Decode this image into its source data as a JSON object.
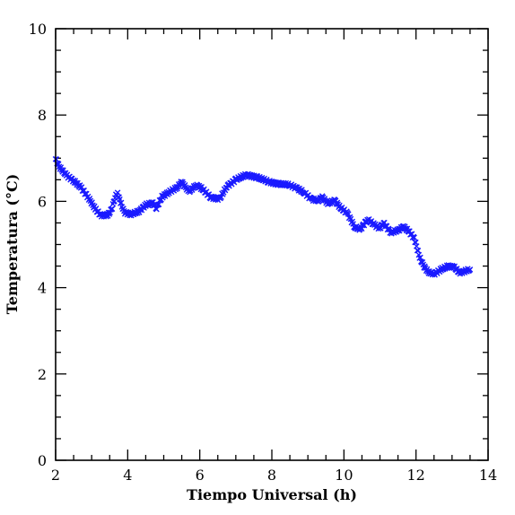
{
  "chart_data": {
    "type": "scatter",
    "title": "",
    "xlabel": "Tiempo Universal (h)",
    "ylabel": "Temperatura (°C)",
    "xlim": [
      2,
      14
    ],
    "ylim": [
      0,
      10
    ],
    "x_ticks": [
      "2",
      "4",
      "6",
      "8",
      "10",
      "12",
      "14"
    ],
    "y_ticks": [
      "0",
      "2",
      "4",
      "6",
      "8",
      "10"
    ],
    "grid": false,
    "marker": "x",
    "color": "#1a1aff",
    "keypoints": [
      [
        2.0,
        6.98
      ],
      [
        2.1,
        6.8
      ],
      [
        2.3,
        6.6
      ],
      [
        2.5,
        6.48
      ],
      [
        2.7,
        6.32
      ],
      [
        2.9,
        6.1
      ],
      [
        3.1,
        5.82
      ],
      [
        3.25,
        5.68
      ],
      [
        3.45,
        5.68
      ],
      [
        3.55,
        5.8
      ],
      [
        3.65,
        6.1
      ],
      [
        3.72,
        6.18
      ],
      [
        3.8,
        5.98
      ],
      [
        3.9,
        5.75
      ],
      [
        4.1,
        5.7
      ],
      [
        4.3,
        5.76
      ],
      [
        4.5,
        5.92
      ],
      [
        4.7,
        5.95
      ],
      [
        4.8,
        5.85
      ],
      [
        4.95,
        6.1
      ],
      [
        5.15,
        6.22
      ],
      [
        5.35,
        6.3
      ],
      [
        5.5,
        6.45
      ],
      [
        5.7,
        6.22
      ],
      [
        5.9,
        6.38
      ],
      [
        6.05,
        6.3
      ],
      [
        6.3,
        6.1
      ],
      [
        6.55,
        6.05
      ],
      [
        6.75,
        6.35
      ],
      [
        7.0,
        6.5
      ],
      [
        7.3,
        6.62
      ],
      [
        7.6,
        6.55
      ],
      [
        7.9,
        6.46
      ],
      [
        8.2,
        6.4
      ],
      [
        8.5,
        6.38
      ],
      [
        8.7,
        6.3
      ],
      [
        8.9,
        6.2
      ],
      [
        9.1,
        6.05
      ],
      [
        9.3,
        6.02
      ],
      [
        9.4,
        6.1
      ],
      [
        9.55,
        5.95
      ],
      [
        9.75,
        6.02
      ],
      [
        9.9,
        5.85
      ],
      [
        10.1,
        5.72
      ],
      [
        10.3,
        5.4
      ],
      [
        10.45,
        5.35
      ],
      [
        10.65,
        5.58
      ],
      [
        10.85,
        5.45
      ],
      [
        11.0,
        5.38
      ],
      [
        11.1,
        5.5
      ],
      [
        11.3,
        5.28
      ],
      [
        11.5,
        5.32
      ],
      [
        11.65,
        5.42
      ],
      [
        11.8,
        5.3
      ],
      [
        11.95,
        5.15
      ],
      [
        12.1,
        4.7
      ],
      [
        12.2,
        4.52
      ],
      [
        12.35,
        4.35
      ],
      [
        12.5,
        4.32
      ],
      [
        12.7,
        4.42
      ],
      [
        12.9,
        4.5
      ],
      [
        13.05,
        4.48
      ],
      [
        13.2,
        4.35
      ],
      [
        13.35,
        4.38
      ],
      [
        13.5,
        4.42
      ]
    ]
  }
}
